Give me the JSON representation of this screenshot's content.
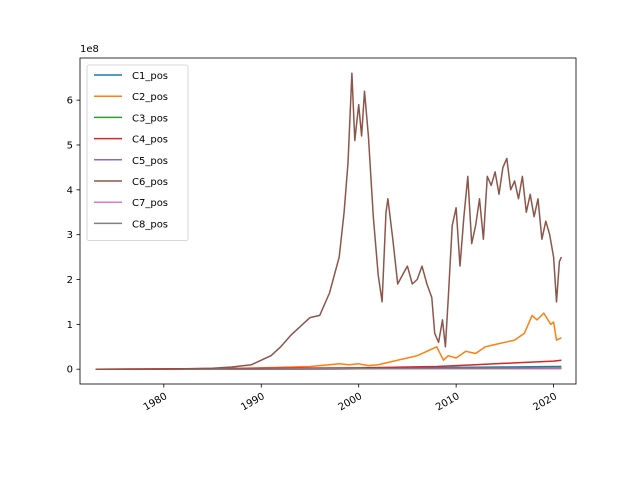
{
  "chart_data": {
    "type": "line",
    "title": "",
    "xlabel": "",
    "ylabel": "",
    "y_offset_label": "1e8",
    "xlim": [
      1971.4,
      2022.3
    ],
    "ylim": [
      -0.33,
      6.94
    ],
    "x_ticks": [
      1980,
      1990,
      2000,
      2010,
      2020
    ],
    "x_tick_labels": [
      "1980",
      "1990",
      "2000",
      "2010",
      "2020"
    ],
    "y_ticks": [
      0,
      1,
      2,
      3,
      4,
      5,
      6
    ],
    "y_tick_labels": [
      "0",
      "1",
      "2",
      "3",
      "4",
      "5",
      "6"
    ],
    "grid": false,
    "legend_position": "upper-left",
    "series": [
      {
        "name": "C1_pos",
        "color": "#1f77b4",
        "x": [
          1973,
          1990,
          2000,
          2005,
          2010,
          2015,
          2020,
          2020.8
        ],
        "y": [
          0,
          0,
          0.02,
          0.03,
          0.04,
          0.05,
          0.06,
          0.06
        ]
      },
      {
        "name": "C2_pos",
        "color": "#ff7f0e",
        "x": [
          1973,
          1985,
          1990,
          1995,
          1997,
          1998,
          1999,
          2000,
          2001,
          2002,
          2003,
          2004,
          2005,
          2006,
          2007,
          2008,
          2008.7,
          2009.2,
          2010,
          2011,
          2012,
          2013,
          2014,
          2015,
          2016,
          2017,
          2017.8,
          2018.3,
          2019,
          2019.7,
          2020,
          2020.3,
          2020.8
        ],
        "y": [
          0,
          0.01,
          0.03,
          0.06,
          0.1,
          0.12,
          0.1,
          0.12,
          0.08,
          0.1,
          0.15,
          0.2,
          0.25,
          0.3,
          0.4,
          0.5,
          0.2,
          0.3,
          0.25,
          0.4,
          0.35,
          0.5,
          0.55,
          0.6,
          0.65,
          0.8,
          1.2,
          1.1,
          1.25,
          1.0,
          1.05,
          0.65,
          0.7
        ]
      },
      {
        "name": "C3_pos",
        "color": "#2ca02c",
        "x": [
          1973,
          1990,
          2000,
          2010,
          2020,
          2020.8
        ],
        "y": [
          0,
          0,
          0.01,
          0.01,
          0.02,
          0.02
        ]
      },
      {
        "name": "C4_pos",
        "color": "#d62728",
        "x": [
          1973,
          1990,
          2000,
          2005,
          2008,
          2010,
          2012,
          2014,
          2016,
          2018,
          2020,
          2020.8
        ],
        "y": [
          0,
          0.02,
          0.03,
          0.05,
          0.06,
          0.08,
          0.1,
          0.12,
          0.14,
          0.16,
          0.18,
          0.2
        ]
      },
      {
        "name": "C5_pos",
        "color": "#9467bd",
        "x": [
          1973,
          1990,
          2000,
          2010,
          2020,
          2020.8
        ],
        "y": [
          0,
          0,
          0.01,
          0.01,
          0.02,
          0.02
        ]
      },
      {
        "name": "C6_pos",
        "color": "#8c564b",
        "x": [
          1973,
          1980,
          1985,
          1987,
          1989,
          1990,
          1991,
          1992,
          1993,
          1994,
          1995,
          1996,
          1997,
          1998,
          1998.5,
          1998.9,
          1999.3,
          1999.6,
          2000,
          2000.3,
          2000.6,
          2001,
          2001.5,
          2002,
          2002.4,
          2002.8,
          2003,
          2003.5,
          2004,
          2004.5,
          2005,
          2005.5,
          2006,
          2006.5,
          2007,
          2007.5,
          2007.8,
          2008.2,
          2008.6,
          2008.9,
          2009.2,
          2009.6,
          2010,
          2010.4,
          2010.8,
          2011.2,
          2011.6,
          2012,
          2012.4,
          2012.8,
          2013.2,
          2013.6,
          2014,
          2014.4,
          2014.8,
          2015.2,
          2015.6,
          2016,
          2016.4,
          2016.8,
          2017.2,
          2017.6,
          2018,
          2018.4,
          2018.8,
          2019.2,
          2019.6,
          2020,
          2020.3,
          2020.6,
          2020.8
        ],
        "y": [
          0,
          0,
          0.02,
          0.05,
          0.1,
          0.2,
          0.3,
          0.5,
          0.75,
          0.95,
          1.15,
          1.2,
          1.7,
          2.5,
          3.5,
          4.6,
          6.6,
          5.1,
          5.9,
          5.2,
          6.2,
          5.2,
          3.4,
          2.1,
          1.5,
          3.5,
          3.8,
          2.9,
          1.9,
          2.1,
          2.3,
          1.9,
          2.0,
          2.3,
          1.9,
          1.6,
          0.8,
          0.6,
          1.1,
          0.5,
          1.6,
          3.2,
          3.6,
          2.3,
          3.4,
          4.3,
          2.8,
          3.2,
          3.8,
          2.9,
          4.3,
          4.1,
          4.4,
          3.9,
          4.5,
          4.7,
          4.0,
          4.2,
          3.8,
          4.3,
          3.5,
          3.9,
          3.4,
          3.8,
          2.9,
          3.3,
          3.0,
          2.5,
          1.5,
          2.4,
          2.5
        ]
      },
      {
        "name": "C7_pos",
        "color": "#e377c2",
        "x": [
          1973,
          1990,
          2000,
          2008,
          2020,
          2020.8
        ],
        "y": [
          0,
          0,
          0.01,
          0.01,
          0.01,
          0.01
        ]
      },
      {
        "name": "C8_pos",
        "color": "#7f7f7f",
        "x": [
          1973,
          1990,
          2000,
          2010,
          2020,
          2020.8
        ],
        "y": [
          0,
          0,
          0.01,
          0.02,
          0.03,
          0.03
        ]
      }
    ]
  }
}
